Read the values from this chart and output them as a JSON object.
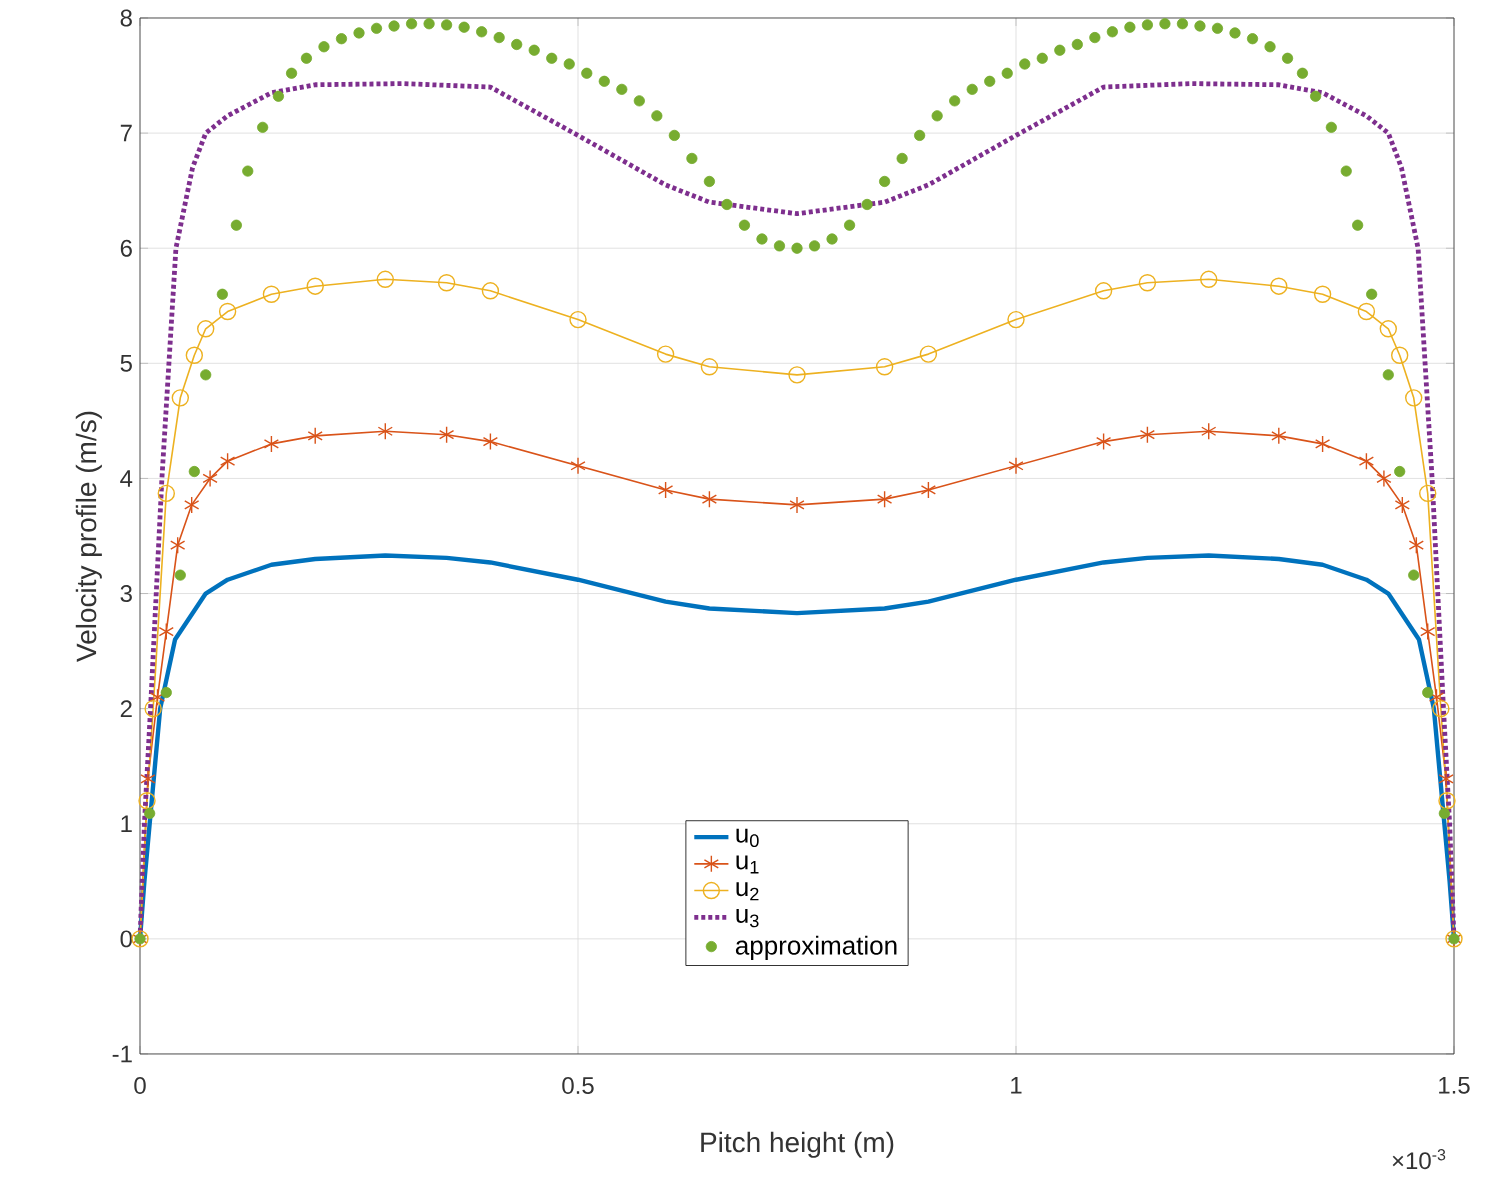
{
  "chart_data": {
    "type": "line",
    "xlabel": "Pitch height (m)",
    "ylabel": "Velocity profile (m/s)",
    "xlim": [
      0,
      1.5
    ],
    "ylim": [
      -1,
      8
    ],
    "xticks": [
      0,
      0.5,
      1,
      1.5
    ],
    "yticks": [
      -1,
      0,
      1,
      2,
      3,
      4,
      5,
      6,
      7,
      8
    ],
    "grid": true,
    "legend": "bottom",
    "annotations": [
      "×10$^{-3}$"
    ],
    "series": [
      {
        "name": "u$_{0}$",
        "color": "#0072bd",
        "marker": "none",
        "line_style": "solid",
        "x": [
          0,
          0.005,
          0.011,
          0.023,
          0.04,
          0.075,
          0.1,
          0.15,
          0.2,
          0.28,
          0.35,
          0.4,
          0.5,
          0.6,
          0.65,
          0.75,
          0.85,
          0.9,
          1,
          1.1,
          1.15,
          1.22,
          1.3,
          1.35,
          1.4,
          1.425,
          1.46,
          1.477,
          1.489,
          1.495,
          1.5
        ],
        "values": [
          0,
          0.5,
          1,
          2,
          2.6,
          3,
          3.12,
          3.25,
          3.3,
          3.33,
          3.31,
          3.27,
          3.12,
          2.93,
          2.87,
          2.83,
          2.87,
          2.93,
          3.12,
          3.27,
          3.31,
          3.33,
          3.3,
          3.25,
          3.12,
          3,
          2.6,
          2,
          1,
          0.5,
          0
        ]
      },
      {
        "name": "u$_{1}$",
        "color": "#d95319",
        "marker": "cross",
        "line_style": "solid",
        "x": [
          0,
          0.009,
          0.02,
          0.03,
          0.043,
          0.059,
          0.08,
          0.1,
          0.15,
          0.2,
          0.28,
          0.35,
          0.4,
          0.5,
          0.6,
          0.65,
          0.75,
          0.85,
          0.9,
          1,
          1.1,
          1.15,
          1.22,
          1.3,
          1.35,
          1.4,
          1.42,
          1.441,
          1.457,
          1.47,
          1.48,
          1.491,
          1.5
        ],
        "values": [
          0,
          1.39,
          2.1,
          2.67,
          3.42,
          3.77,
          4.0,
          4.15,
          4.3,
          4.37,
          4.41,
          4.38,
          4.32,
          4.11,
          3.9,
          3.82,
          3.77,
          3.82,
          3.9,
          4.11,
          4.32,
          4.38,
          4.41,
          4.37,
          4.3,
          4.15,
          4.0,
          3.77,
          3.42,
          2.67,
          2.1,
          1.39,
          0
        ]
      },
      {
        "name": "u$_{2}$",
        "color": "#edb120",
        "marker": "circle",
        "line_style": "solid",
        "x": [
          0,
          0.008,
          0.015,
          0.03,
          0.046,
          0.062,
          0.075,
          0.1,
          0.15,
          0.2,
          0.28,
          0.35,
          0.4,
          0.5,
          0.6,
          0.65,
          0.75,
          0.85,
          0.9,
          1,
          1.1,
          1.15,
          1.22,
          1.3,
          1.35,
          1.4,
          1.425,
          1.438,
          1.454,
          1.47,
          1.485,
          1.492,
          1.5
        ],
        "values": [
          0,
          1.2,
          2,
          3.87,
          4.7,
          5.07,
          5.3,
          5.45,
          5.6,
          5.67,
          5.73,
          5.7,
          5.63,
          5.38,
          5.08,
          4.97,
          4.9,
          4.97,
          5.08,
          5.38,
          5.63,
          5.7,
          5.73,
          5.67,
          5.6,
          5.45,
          5.3,
          5.07,
          4.7,
          3.87,
          2,
          1.2,
          0
        ]
      },
      {
        "name": "u$_{3}$",
        "color": "#7e2f8e",
        "marker": "none",
        "line_style": "dotted",
        "x": [
          0,
          0.005,
          0.012,
          0.025,
          0.041,
          0.06,
          0.075,
          0.1,
          0.15,
          0.2,
          0.3,
          0.4,
          0.5,
          0.6,
          0.65,
          0.75,
          0.85,
          0.9,
          1,
          1.1,
          1.2,
          1.3,
          1.35,
          1.4,
          1.425,
          1.44,
          1.459,
          1.475,
          1.488,
          1.495,
          1.5
        ],
        "values": [
          0,
          1,
          2,
          4,
          6,
          6.7,
          7,
          7.15,
          7.35,
          7.42,
          7.43,
          7.4,
          6.98,
          6.55,
          6.4,
          6.3,
          6.4,
          6.55,
          6.98,
          7.4,
          7.43,
          7.42,
          7.35,
          7.15,
          7,
          6.7,
          6,
          4,
          2,
          1,
          0
        ]
      },
      {
        "name": "approximation",
        "type": "scatter",
        "color": "#77ac30",
        "marker": "circle",
        "x": [
          0,
          0.011,
          0.03,
          0.046,
          0.062,
          0.075,
          0.094,
          0.11,
          0.123,
          0.14,
          0.158,
          0.173,
          0.19,
          0.21,
          0.23,
          0.25,
          0.27,
          0.29,
          0.31,
          0.33,
          0.35,
          0.37,
          0.39,
          0.41,
          0.43,
          0.45,
          0.47,
          0.49,
          0.51,
          0.53,
          0.55,
          0.57,
          0.59,
          0.61,
          0.63,
          0.65,
          0.67,
          0.69,
          0.71,
          0.73,
          0.75,
          0.77,
          0.79,
          0.81,
          0.83,
          0.85,
          0.87,
          0.89,
          0.91,
          0.93,
          0.95,
          0.97,
          0.99,
          1.01,
          1.03,
          1.05,
          1.07,
          1.09,
          1.11,
          1.13,
          1.15,
          1.17,
          1.19,
          1.21,
          1.23,
          1.25,
          1.27,
          1.29,
          1.31,
          1.327,
          1.342,
          1.36,
          1.377,
          1.39,
          1.406,
          1.425,
          1.438,
          1.454,
          1.47,
          1.489,
          1.5
        ],
        "values": [
          0,
          1.09,
          2.14,
          3.16,
          4.06,
          4.9,
          5.6,
          6.2,
          6.67,
          7.05,
          7.32,
          7.52,
          7.65,
          7.75,
          7.82,
          7.87,
          7.91,
          7.93,
          7.95,
          7.95,
          7.94,
          7.92,
          7.88,
          7.83,
          7.77,
          7.72,
          7.65,
          7.6,
          7.52,
          7.45,
          7.38,
          7.28,
          7.15,
          6.98,
          6.78,
          6.58,
          6.38,
          6.2,
          6.08,
          6.02,
          6.0,
          6.02,
          6.08,
          6.2,
          6.38,
          6.58,
          6.78,
          6.98,
          7.15,
          7.28,
          7.38,
          7.45,
          7.52,
          7.6,
          7.65,
          7.72,
          7.77,
          7.83,
          7.88,
          7.92,
          7.94,
          7.95,
          7.95,
          7.93,
          7.91,
          7.87,
          7.82,
          7.75,
          7.65,
          7.52,
          7.32,
          7.05,
          6.67,
          6.2,
          5.6,
          4.9,
          4.06,
          3.16,
          2.14,
          1.09,
          0
        ]
      }
    ]
  }
}
